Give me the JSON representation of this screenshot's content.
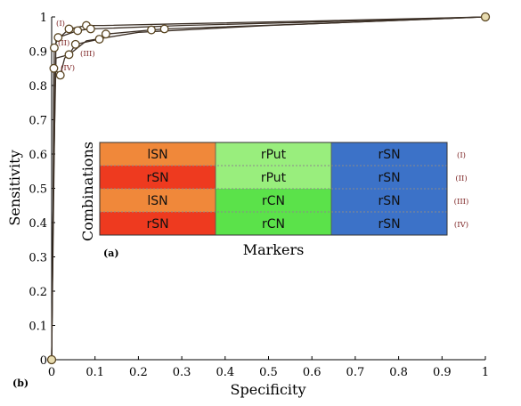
{
  "chart_data": {
    "type": "line",
    "xlabel": "Specificity",
    "ylabel": "Sensitivity",
    "xlim": [
      0,
      1
    ],
    "ylim": [
      0,
      1
    ],
    "x_ticks": [
      "0",
      "0.1",
      "0.2",
      "0.3",
      "0.4",
      "0.5",
      "0.6",
      "0.7",
      "0.8",
      "0.9",
      "1"
    ],
    "y_ticks": [
      "0",
      "0.1",
      "0.2",
      "0.3",
      "0.4",
      "0.5",
      "0.6",
      "0.7",
      "0.8",
      "0.9",
      "1"
    ],
    "grid": false,
    "series": [
      {
        "name": "(I)",
        "points": [
          [
            0,
            0
          ],
          [
            0.004,
            0.4
          ],
          [
            0.008,
            0.8
          ],
          [
            0.01,
            0.93
          ],
          [
            0.04,
            0.965
          ],
          [
            0.08,
            0.975
          ],
          [
            0.12,
            0.975
          ],
          [
            0.3,
            0.98
          ],
          [
            0.6,
            0.988
          ],
          [
            1,
            1
          ]
        ],
        "markers": [
          [
            0.04,
            0.965
          ],
          [
            0.08,
            0.975
          ]
        ]
      },
      {
        "name": "(II)",
        "points": [
          [
            0,
            0
          ],
          [
            0.004,
            0.5
          ],
          [
            0.006,
            0.91
          ],
          [
            0.015,
            0.94
          ],
          [
            0.06,
            0.96
          ],
          [
            0.09,
            0.965
          ],
          [
            0.3,
            0.975
          ],
          [
            0.6,
            0.985
          ],
          [
            1,
            1
          ]
        ],
        "markers": [
          [
            0.006,
            0.91
          ],
          [
            0.015,
            0.94
          ],
          [
            0.06,
            0.96
          ],
          [
            0.09,
            0.965
          ]
        ]
      },
      {
        "name": "(III)",
        "points": [
          [
            0,
            0
          ],
          [
            0.004,
            0.5
          ],
          [
            0.01,
            0.88
          ],
          [
            0.04,
            0.89
          ],
          [
            0.055,
            0.92
          ],
          [
            0.11,
            0.935
          ],
          [
            0.125,
            0.95
          ],
          [
            0.23,
            0.962
          ],
          [
            0.26,
            0.965
          ],
          [
            0.6,
            0.98
          ],
          [
            1,
            1
          ]
        ],
        "markers": [
          [
            0.04,
            0.89
          ],
          [
            0.055,
            0.92
          ],
          [
            0.11,
            0.935
          ],
          [
            0.125,
            0.95
          ],
          [
            0.23,
            0.962
          ],
          [
            0.26,
            0.965
          ]
        ]
      },
      {
        "name": "(IV)",
        "points": [
          [
            0,
            0
          ],
          [
            0.003,
            0.4
          ],
          [
            0.005,
            0.85
          ],
          [
            0.02,
            0.83
          ],
          [
            0.03,
            0.88
          ],
          [
            0.08,
            0.93
          ],
          [
            0.2,
            0.955
          ],
          [
            0.5,
            0.975
          ],
          [
            1,
            1
          ]
        ],
        "markers": [
          [
            0.005,
            0.85
          ],
          [
            0.02,
            0.83
          ]
        ]
      }
    ],
    "endpoint_markers": [
      [
        0,
        0
      ],
      [
        1,
        1
      ]
    ]
  },
  "inset": {
    "panel_label": "(a)",
    "xlabel": "Markers",
    "ylabel": "Combinations",
    "rows": [
      {
        "cells": [
          "lSN",
          "rPut",
          "rSN"
        ],
        "colors": [
          "#f0883a",
          "#99ee7d",
          "#3c72c8"
        ],
        "tag": "(I)"
      },
      {
        "cells": [
          "rSN",
          "rPut",
          "rSN"
        ],
        "colors": [
          "#ee3a1f",
          "#99ee7d",
          "#3c72c8"
        ],
        "tag": "(II)"
      },
      {
        "cells": [
          "lSN",
          "rCN",
          "rSN"
        ],
        "colors": [
          "#f0883a",
          "#5be24a",
          "#3c72c8"
        ],
        "tag": "(III)"
      },
      {
        "cells": [
          "rSN",
          "rCN",
          "rSN"
        ],
        "colors": [
          "#ee3a1f",
          "#5be24a",
          "#3c72c8"
        ],
        "tag": "(IV)"
      }
    ]
  },
  "panel_b_label": "(b)",
  "colors": {
    "curve": "#3b2f25",
    "marker_stroke": "#5a4622",
    "marker_fill": "#ffffff",
    "endpoint_fill": "#e8dcb0",
    "roman_text": "#7a1f1f",
    "cell_divider": "#8a8a8a"
  }
}
